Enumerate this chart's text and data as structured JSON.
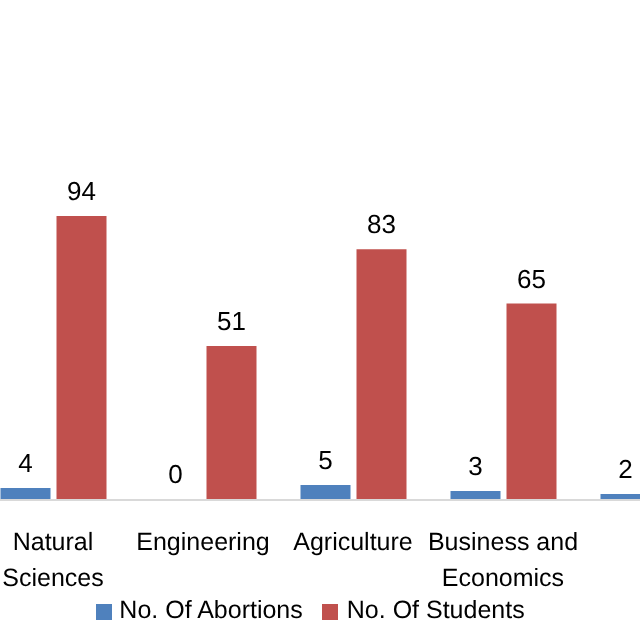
{
  "chart_data": {
    "type": "bar",
    "categories": [
      "Natural Sciences",
      "Engineering",
      "Agriculture",
      "Business and Economics",
      null
    ],
    "series": [
      {
        "name": "No. Of Abortions",
        "color": "#4f81bd",
        "values": [
          4,
          0,
          5,
          3,
          2
        ]
      },
      {
        "name": "No. Of Students",
        "color": "#c0504d",
        "values": [
          94,
          51,
          83,
          65,
          null
        ]
      }
    ],
    "data_labels": true,
    "legend": "bottom"
  }
}
